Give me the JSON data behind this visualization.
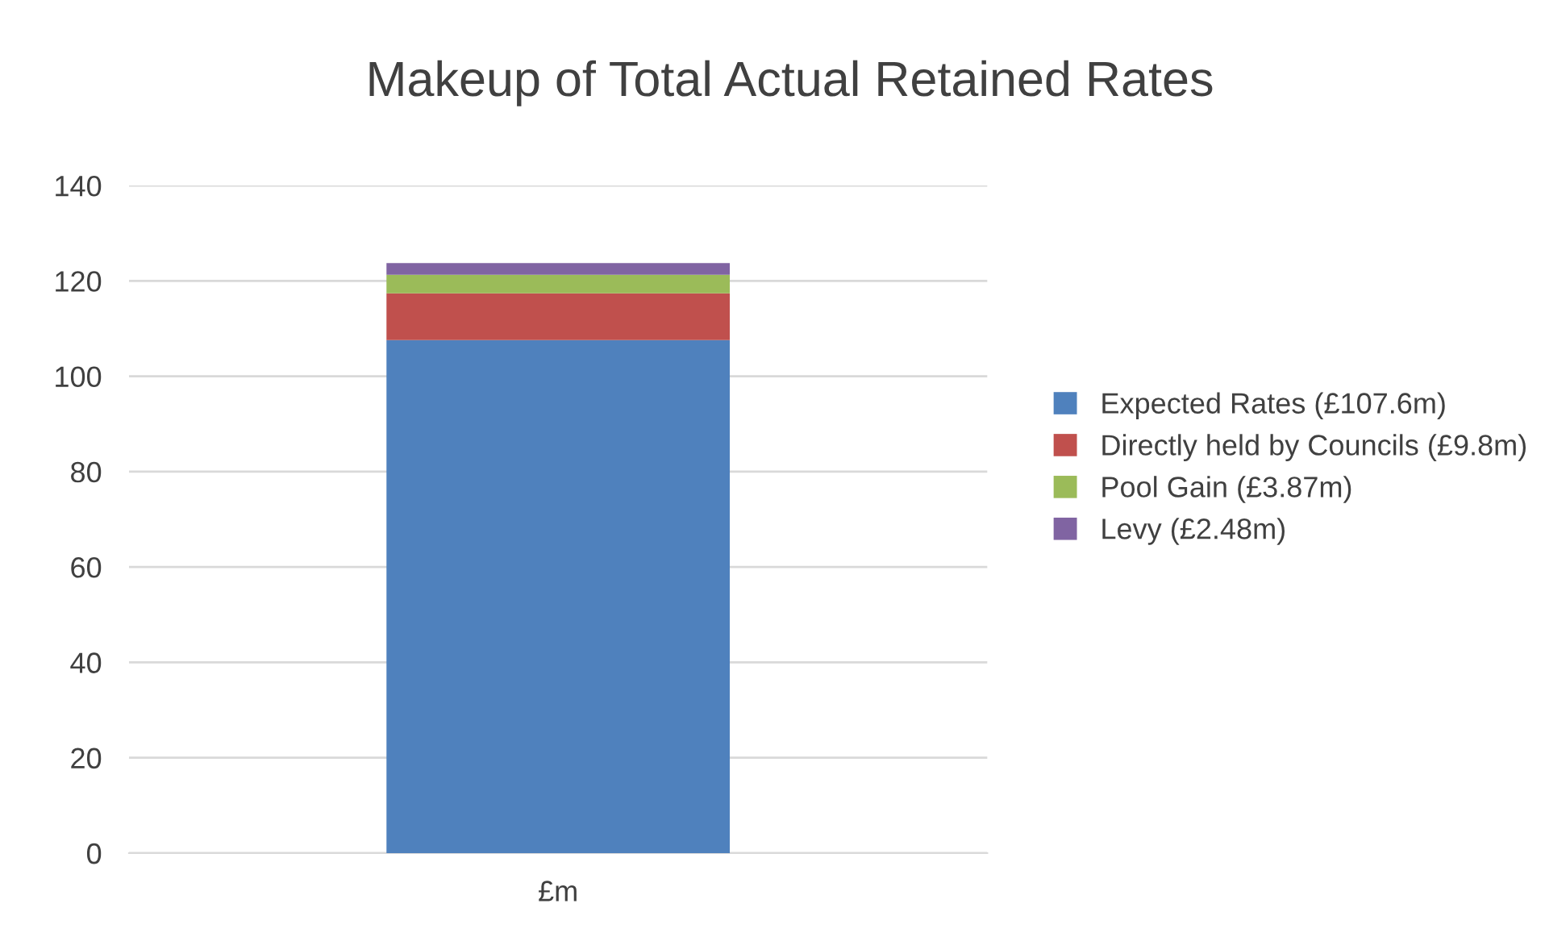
{
  "chart_data": {
    "type": "bar",
    "title": "Makeup of Total Actual Retained Rates",
    "categories": [
      "£m"
    ],
    "stacked": true,
    "series": [
      {
        "name": "Expected Rates (£107.6m)",
        "color": "#4f81bd",
        "values": [
          107.6
        ]
      },
      {
        "name": "Directly held by Councils (£9.8m)",
        "color": "#c0504d",
        "values": [
          9.8
        ]
      },
      {
        "name": "Pool Gain (£3.87m)",
        "color": "#9bbb59",
        "values": [
          3.87
        ]
      },
      {
        "name": "Levy (£2.48m)",
        "color": "#8064a2",
        "values": [
          2.48
        ]
      }
    ],
    "ylim": [
      0,
      140
    ],
    "yticks": [
      0,
      20,
      40,
      60,
      80,
      100,
      120,
      140
    ],
    "grid": "y",
    "legend": "right"
  }
}
